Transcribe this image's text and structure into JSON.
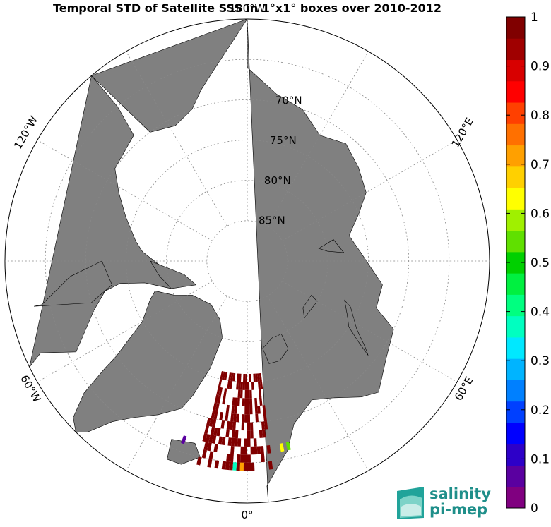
{
  "chart_data": {
    "type": "heatmap",
    "title": "Temporal STD of Satellite SSS in 1°x1° boxes over 2010-2012",
    "projection": "north-polar-stereographic",
    "latitude_labels": [
      "70°N",
      "75°N",
      "80°N",
      "85°N"
    ],
    "longitude_labels": [
      "0°",
      "60°E",
      "120°E",
      "180°W",
      "120°W",
      "60°W"
    ],
    "colorbar": {
      "min": 0,
      "max": 1,
      "ticks": [
        0,
        0.1,
        0.2,
        0.3,
        0.4,
        0.5,
        0.6,
        0.7,
        0.8,
        0.9,
        1
      ],
      "tick_labels": [
        "0",
        "0.1",
        "0.2",
        "0.3",
        "0.4",
        "0.5",
        "0.6",
        "0.7",
        "0.8",
        "0.9",
        "1"
      ],
      "colors": [
        "#800080",
        "#5a00a0",
        "#2d00c8",
        "#0000ff",
        "#0040ff",
        "#0080ff",
        "#00b4ff",
        "#00e8ff",
        "#00ffc0",
        "#00ff80",
        "#00f040",
        "#00d000",
        "#60e000",
        "#a0f000",
        "#ffff00",
        "#ffd000",
        "#ffa000",
        "#ff7000",
        "#ff4000",
        "#ff0000",
        "#d80000",
        "#a00000",
        "#800000"
      ]
    },
    "data_description": "Most visible boxes near Greenland/Barents seas at saturated high value (~1), a few low (purple ~0) and mid values.",
    "sample_cells": [
      {
        "lon": -5,
        "lat": 72,
        "value": 1.0
      },
      {
        "lon": 0,
        "lat": 70,
        "value": 1.0
      },
      {
        "lon": 5,
        "lat": 68,
        "value": 1.0
      },
      {
        "lon": -20,
        "lat": 66,
        "value": 0.05
      },
      {
        "lon": 10,
        "lat": 66,
        "value": 0.65
      },
      {
        "lon": 12,
        "lat": 66,
        "value": 0.55
      },
      {
        "lon": -2,
        "lat": 64,
        "value": 0.7
      },
      {
        "lon": -4,
        "lat": 64,
        "value": 0.35
      }
    ]
  },
  "logo": {
    "line1": "salinity",
    "line2": "pi-mep"
  }
}
